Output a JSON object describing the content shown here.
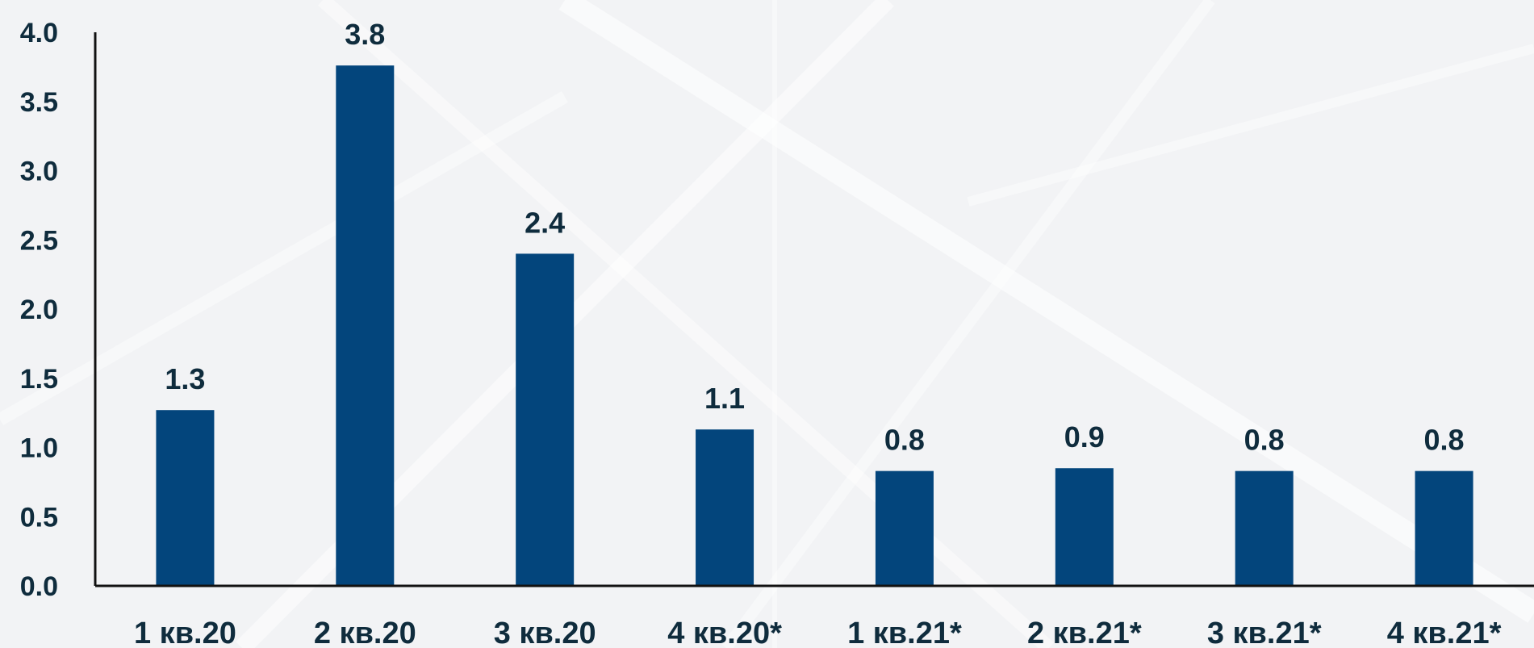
{
  "chart_data": {
    "type": "bar",
    "categories": [
      "1 кв.20",
      "2 кв.20",
      "3 кв.20",
      "4 кв.20*",
      "1 кв.21*",
      "2 кв.21*",
      "3 кв.21*",
      "4 кв.21*"
    ],
    "values": [
      1.27,
      3.76,
      2.4,
      1.13,
      0.83,
      0.85,
      0.83,
      0.83
    ],
    "data_labels": [
      "1.3",
      "3.8",
      "2.4",
      "1.1",
      "0.8",
      "0.9",
      "0.8",
      "0.8"
    ],
    "y_ticks": [
      "0.0",
      "0.5",
      "1.0",
      "1.5",
      "2.0",
      "2.5",
      "3.0",
      "3.5",
      "4.0"
    ],
    "ylim": [
      0,
      4.0
    ],
    "title": "",
    "xlabel": "",
    "ylabel": "",
    "grid": false,
    "legend": "none",
    "colors": {
      "bar": "#03457c",
      "text": "#0f2c3d",
      "axis": "#111111",
      "background": "#f2f3f5"
    }
  }
}
